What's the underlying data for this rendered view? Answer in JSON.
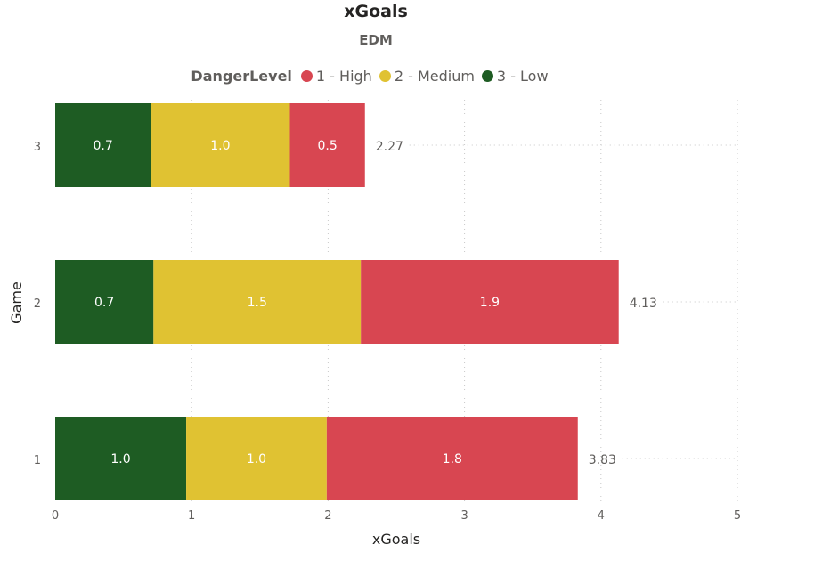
{
  "chart_data": {
    "type": "bar",
    "orientation": "horizontal",
    "stacked": true,
    "title": "xGoals",
    "subtitle": "EDM",
    "legend_title": "DangerLevel",
    "categories": [
      "3",
      "2",
      "1"
    ],
    "series": [
      {
        "name": "3 - Low",
        "color": "#1e5c23",
        "values": [
          0.7,
          0.72,
          0.96
        ],
        "labels": [
          "0.7",
          "0.7",
          "1.0"
        ]
      },
      {
        "name": "2 - Medium",
        "color": "#e0c232",
        "values": [
          1.02,
          1.52,
          1.03
        ],
        "labels": [
          "1.0",
          "1.5",
          "1.0"
        ]
      },
      {
        "name": "1 - High",
        "color": "#d84651",
        "values": [
          0.55,
          1.89,
          1.84
        ],
        "labels": [
          "0.5",
          "1.9",
          "1.8"
        ]
      }
    ],
    "legend_order": [
      "1 - High",
      "2 - Medium",
      "3 - Low"
    ],
    "totals": [
      "2.27",
      "4.13",
      "3.83"
    ],
    "xlabel": "xGoals",
    "ylabel": "Game",
    "xlim": [
      0,
      5
    ],
    "xticks": [
      "0",
      "1",
      "2",
      "3",
      "4",
      "5"
    ],
    "grid": true
  }
}
